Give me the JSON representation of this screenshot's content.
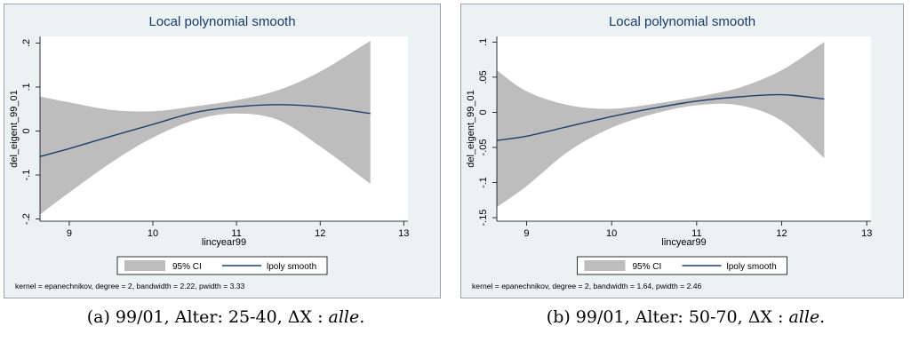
{
  "chart_data": [
    {
      "type": "line",
      "title": "Local polynomial smooth",
      "xlabel": "lincyear99",
      "ylabel": "del_eigent_99_01",
      "xlim": [
        8.65,
        13.05
      ],
      "ylim": [
        -0.205,
        0.215
      ],
      "x_ticks": [
        9,
        10,
        11,
        12,
        13
      ],
      "x_tick_labels": [
        "9",
        "10",
        "11",
        "12",
        "13"
      ],
      "y_ticks": [
        -0.2,
        -0.1,
        0,
        0.1,
        0.2
      ],
      "y_tick_labels": [
        "-.2",
        "-.1",
        "0",
        ".1",
        ".2"
      ],
      "grid": false,
      "legend_position": "bottom",
      "note": "kernel = epanechnikov, degree = 2, bandwidth = 2.22, pwidth = 3.33",
      "series": [
        {
          "name": "lpoly smooth",
          "color": "#1f3f6b",
          "x": [
            8.65,
            9.0,
            9.5,
            10.0,
            10.5,
            11.0,
            11.5,
            12.0,
            12.6
          ],
          "y": [
            -0.058,
            -0.04,
            -0.012,
            0.015,
            0.042,
            0.055,
            0.06,
            0.055,
            0.04
          ]
        },
        {
          "name": "95% CI",
          "color": "#bdbdbd",
          "x": [
            8.65,
            9.0,
            9.5,
            10.0,
            10.5,
            11.0,
            11.5,
            12.0,
            12.6
          ],
          "upper": [
            0.078,
            0.065,
            0.048,
            0.045,
            0.056,
            0.07,
            0.093,
            0.135,
            0.205
          ],
          "lower": [
            -0.19,
            -0.14,
            -0.072,
            -0.015,
            0.025,
            0.04,
            0.025,
            -0.035,
            -0.12
          ]
        }
      ],
      "caption": {
        "prefix": "(a) 99/01, Alter: 25-40, ΔX : ",
        "italic": "alle",
        "suffix": "."
      }
    },
    {
      "type": "line",
      "title": "Local polynomial smooth",
      "xlabel": "lincyear99",
      "ylabel": "del_eigent_99_01",
      "xlim": [
        8.65,
        13.05
      ],
      "ylim": [
        -0.155,
        0.108
      ],
      "x_ticks": [
        9,
        10,
        11,
        12,
        13
      ],
      "x_tick_labels": [
        "9",
        "10",
        "11",
        "12",
        "13"
      ],
      "y_ticks": [
        -0.15,
        -0.1,
        -0.05,
        0,
        0.05,
        0.1
      ],
      "y_tick_labels": [
        "-.15",
        "-.1",
        "-.05",
        "0",
        ".05",
        ".1"
      ],
      "grid": false,
      "legend_position": "bottom",
      "note": "kernel = epanechnikov, degree = 2, bandwidth = 1.64, pwidth = 2.46",
      "series": [
        {
          "name": "lpoly smooth",
          "color": "#1f3f6b",
          "x": [
            8.65,
            9.0,
            9.5,
            10.0,
            10.5,
            11.0,
            11.5,
            12.0,
            12.5
          ],
          "y": [
            -0.04,
            -0.034,
            -0.02,
            -0.006,
            0.006,
            0.016,
            0.022,
            0.025,
            0.019
          ]
        },
        {
          "name": "95% CI",
          "color": "#bdbdbd",
          "x": [
            8.65,
            9.0,
            9.5,
            10.0,
            10.5,
            11.0,
            11.5,
            12.0,
            12.5
          ],
          "upper": [
            0.06,
            0.03,
            0.01,
            0.005,
            0.012,
            0.022,
            0.035,
            0.06,
            0.1
          ],
          "lower": [
            -0.135,
            -0.105,
            -0.055,
            -0.022,
            -0.002,
            0.01,
            0.01,
            -0.012,
            -0.065
          ]
        }
      ],
      "caption": {
        "prefix": "(b) 99/01, Alter: 50-70, ΔX : ",
        "italic": "alle",
        "suffix": "."
      }
    }
  ]
}
